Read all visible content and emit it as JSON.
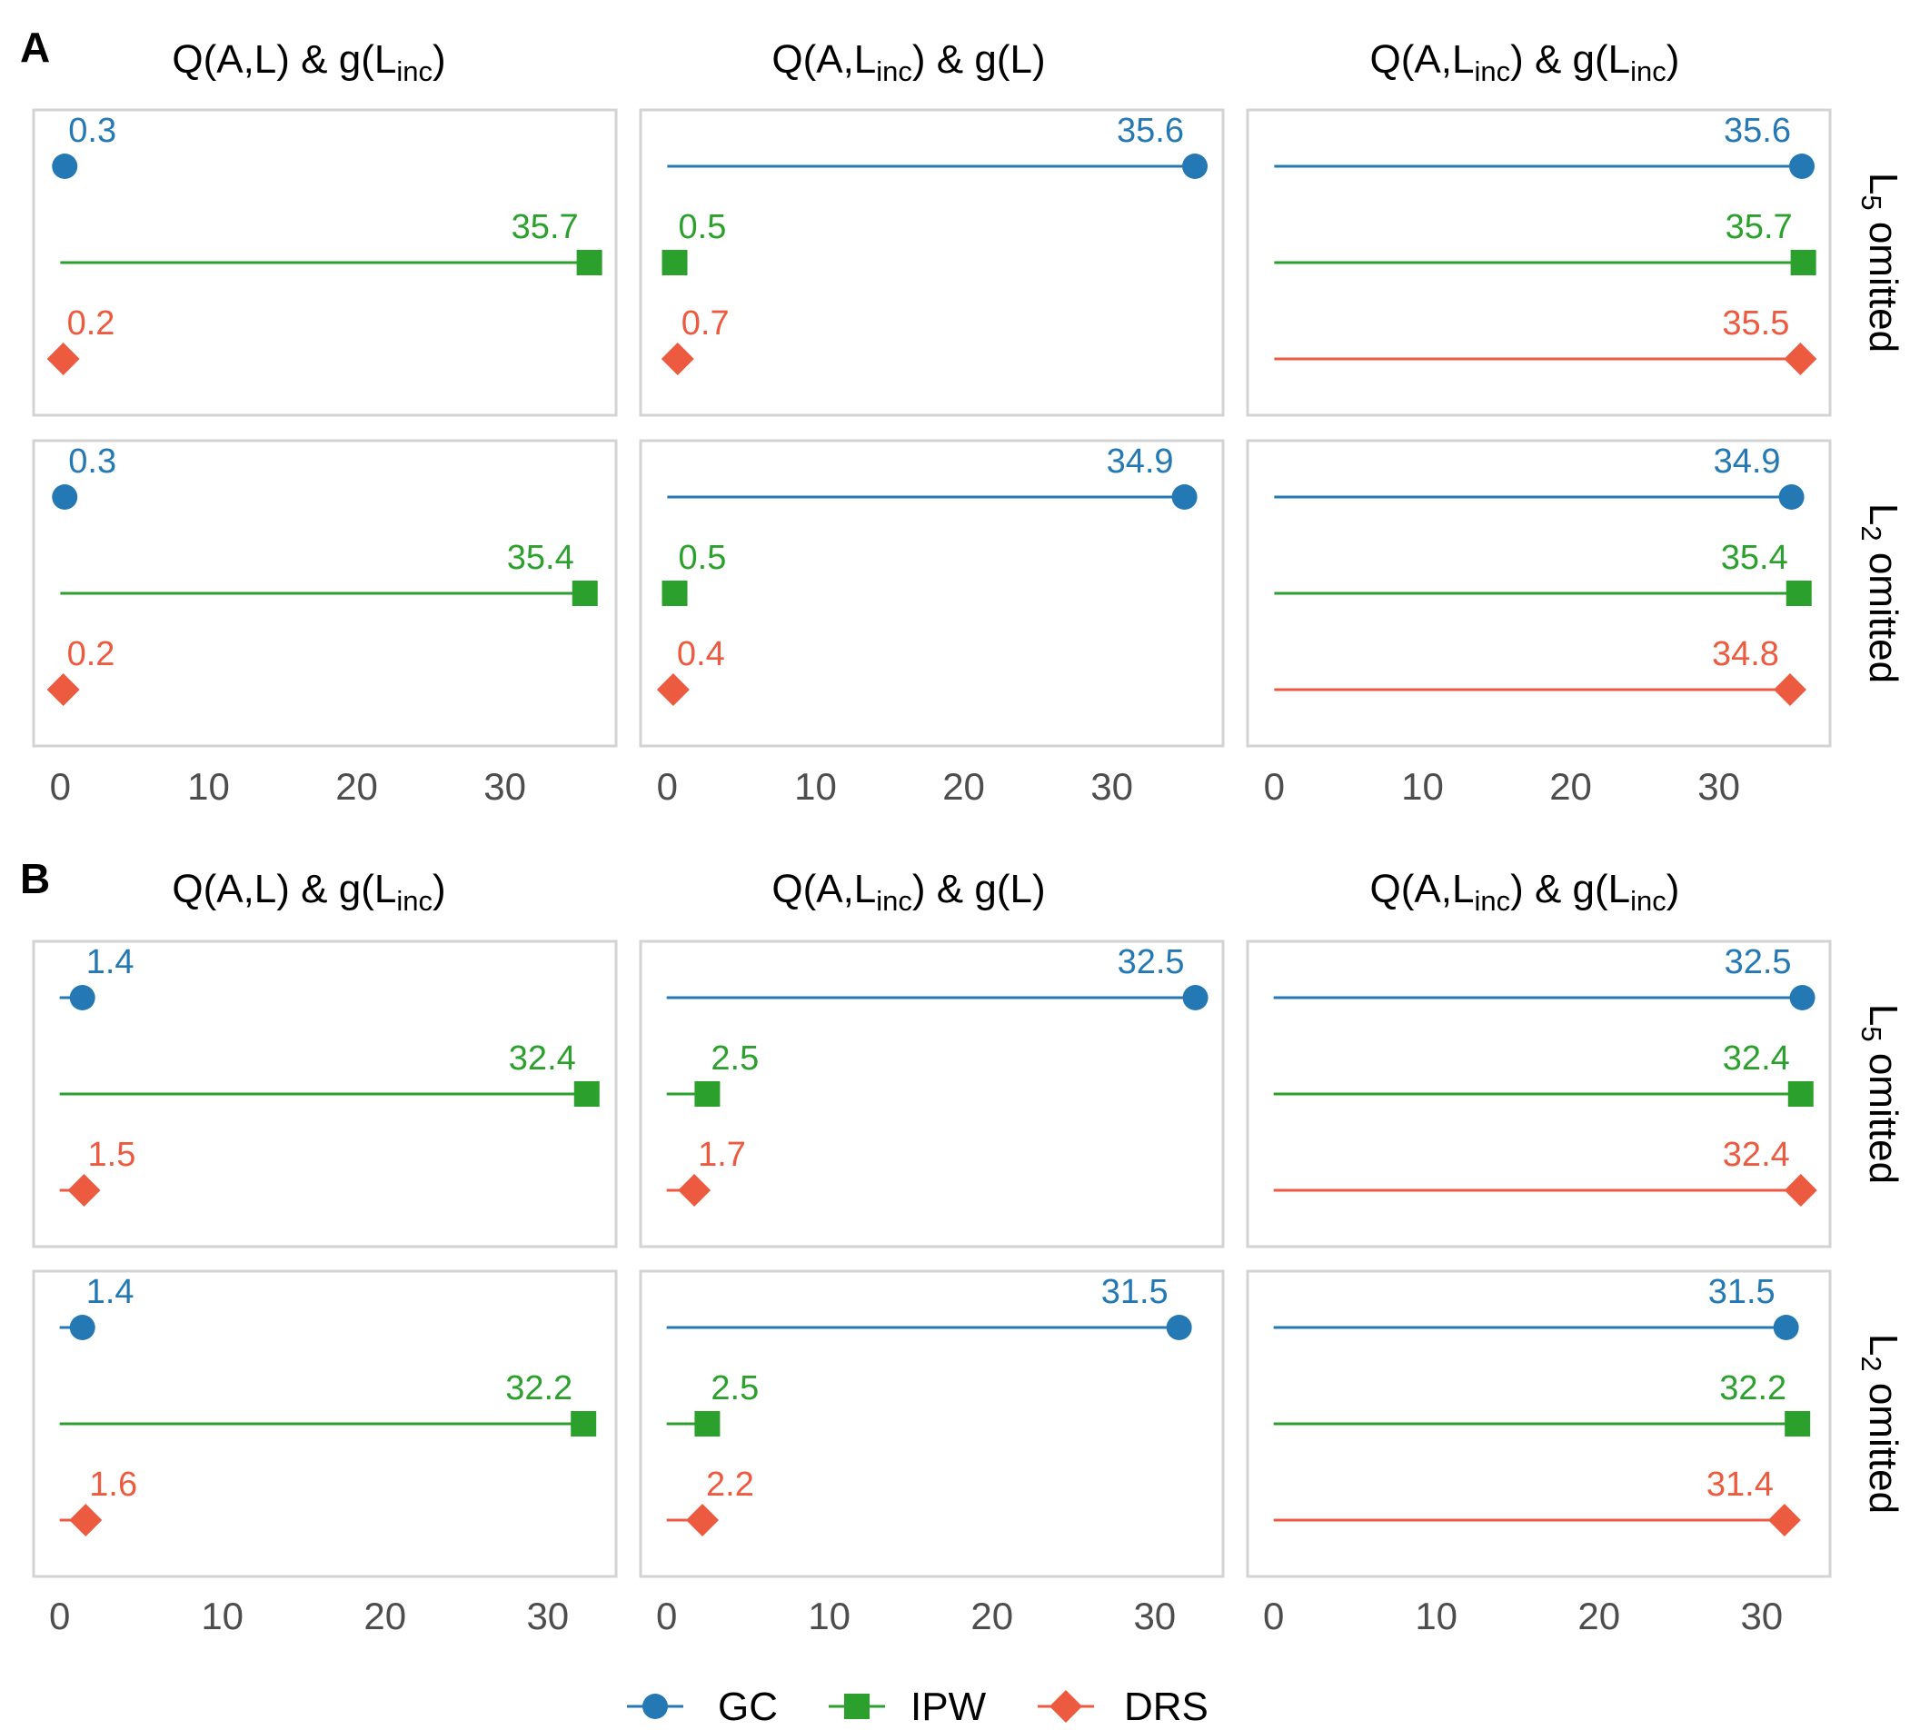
{
  "colors": {
    "GC": "#2479b5",
    "IPW": "#2ca02c",
    "DRS": "#ec5a40",
    "panel_border": "#d3d3d3",
    "tick_text": "#4d4d4d"
  },
  "legend": {
    "items": [
      {
        "key": "GC",
        "label": "GC",
        "icon": "circle-icon"
      },
      {
        "key": "IPW",
        "label": "IPW",
        "icon": "square-icon"
      },
      {
        "key": "DRS",
        "label": "DRS",
        "icon": "diamond-icon"
      }
    ]
  },
  "chart_data": [
    {
      "type": "lollipop",
      "panel_label": "A",
      "columns": [
        {
          "main": "Q(A,L) & g(L",
          "sub": "inc",
          "tail": ")"
        },
        {
          "main": "Q(A,L",
          "sub": "inc",
          "tail": ") & g(L)"
        },
        {
          "main": "Q(A,L",
          "sub": "inc",
          "tail": ") & g(L",
          "sub2": "inc",
          "tail2": ")"
        }
      ],
      "rows": [
        {
          "pre": "L",
          "sub": "5",
          "post": " omitted"
        },
        {
          "pre": "L",
          "sub": "2",
          "post": " omitted"
        }
      ],
      "x_ticks": [
        0,
        10,
        20,
        30
      ],
      "xlim": [
        -1.8,
        37.5
      ],
      "series_order": [
        "GC",
        "IPW",
        "DRS"
      ],
      "values": [
        [
          [
            0.3,
            35.7,
            0.2
          ],
          [
            35.6,
            0.5,
            0.7
          ],
          [
            35.6,
            35.7,
            35.5
          ]
        ],
        [
          [
            0.3,
            35.4,
            0.2
          ],
          [
            34.9,
            0.5,
            0.4
          ],
          [
            34.9,
            35.4,
            34.8
          ]
        ]
      ],
      "value_labels": [
        [
          [
            "0.3",
            "35.7",
            "0.2"
          ],
          [
            "35.6",
            "0.5",
            "0.7"
          ],
          [
            "35.6",
            "35.7",
            "35.5"
          ]
        ],
        [
          [
            "0.3",
            "35.4",
            "0.2"
          ],
          [
            "34.9",
            "0.5",
            "0.4"
          ],
          [
            "34.9",
            "35.4",
            "34.8"
          ]
        ]
      ]
    },
    {
      "type": "lollipop",
      "panel_label": "B",
      "columns": [
        {
          "main": "Q(A,L) & g(L",
          "sub": "inc",
          "tail": ")"
        },
        {
          "main": "Q(A,L",
          "sub": "inc",
          "tail": ") & g(L)"
        },
        {
          "main": "Q(A,L",
          "sub": "inc",
          "tail": ") & g(L",
          "sub2": "inc",
          "tail2": ")"
        }
      ],
      "rows": [
        {
          "pre": "L",
          "sub": "5",
          "post": " omitted"
        },
        {
          "pre": "L",
          "sub": "2",
          "post": " omitted"
        }
      ],
      "x_ticks": [
        0,
        10,
        20,
        30
      ],
      "xlim": [
        -1.6,
        34.2
      ],
      "series_order": [
        "GC",
        "IPW",
        "DRS"
      ],
      "values": [
        [
          [
            1.4,
            32.4,
            1.5
          ],
          [
            32.5,
            2.5,
            1.7
          ],
          [
            32.5,
            32.4,
            32.4
          ]
        ],
        [
          [
            1.4,
            32.2,
            1.6
          ],
          [
            31.5,
            2.5,
            2.2
          ],
          [
            31.5,
            32.2,
            31.4
          ]
        ]
      ],
      "value_labels": [
        [
          [
            "1.4",
            "32.4",
            "1.5"
          ],
          [
            "32.5",
            "2.5",
            "1.7"
          ],
          [
            "32.5",
            "32.4",
            "32.4"
          ]
        ],
        [
          [
            "1.4",
            "32.2",
            "1.6"
          ],
          [
            "31.5",
            "2.5",
            "2.2"
          ],
          [
            "31.5",
            "32.2",
            "31.4"
          ]
        ]
      ]
    }
  ]
}
